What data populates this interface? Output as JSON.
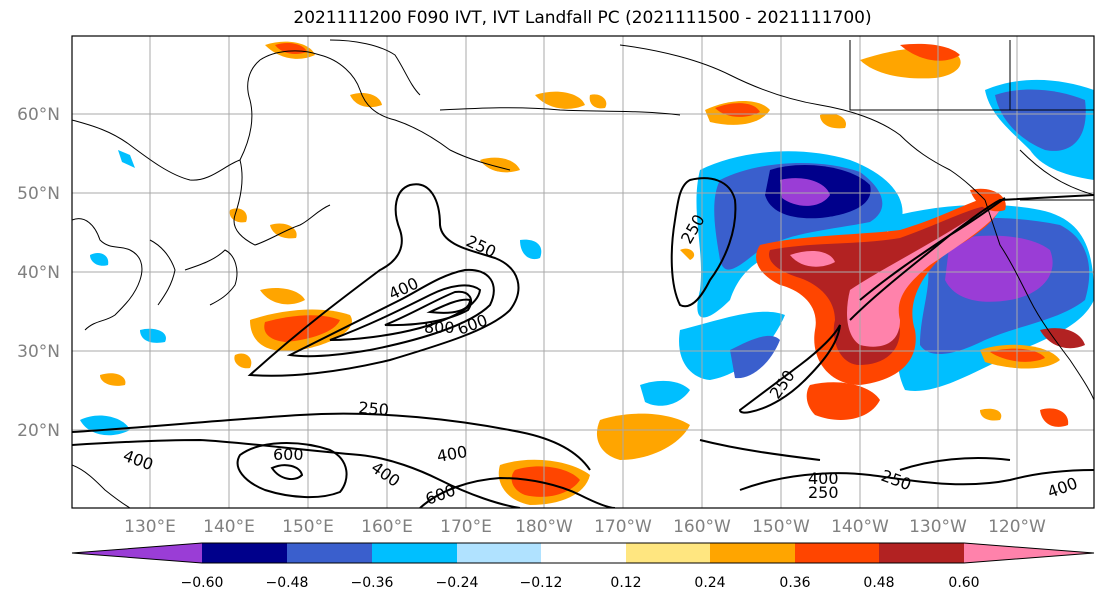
{
  "title": "2021111200 F090 IVT, IVT Landfall PC (2021111500 - 2021111700)",
  "lat_labels": [
    "60°N",
    "50°N",
    "40°N",
    "30°N",
    "20°N"
  ],
  "lon_labels": [
    "130°E",
    "140°E",
    "150°E",
    "160°E",
    "170°E",
    "180°W",
    "170°W",
    "160°W",
    "150°W",
    "140°W",
    "130°W",
    "120°W"
  ],
  "contour_labels": [
    "250",
    "400",
    "600",
    "800",
    "250",
    "250",
    "400",
    "250",
    "600",
    "400",
    "400",
    "600",
    "400",
    "250",
    "250",
    "400"
  ],
  "colorbar": {
    "ticks": [
      "−0.60",
      "−0.48",
      "−0.36",
      "−0.24",
      "−0.12",
      "0.12",
      "0.24",
      "0.36",
      "0.48",
      "0.60"
    ],
    "colors": [
      "#9a3dd6",
      "#00008b",
      "#3a5fcd",
      "#00bfff",
      "#b0e2ff",
      "#ffffff",
      "#ffe680",
      "#ffa500",
      "#ff4500",
      "#b22222",
      "#ff82ab"
    ]
  }
}
